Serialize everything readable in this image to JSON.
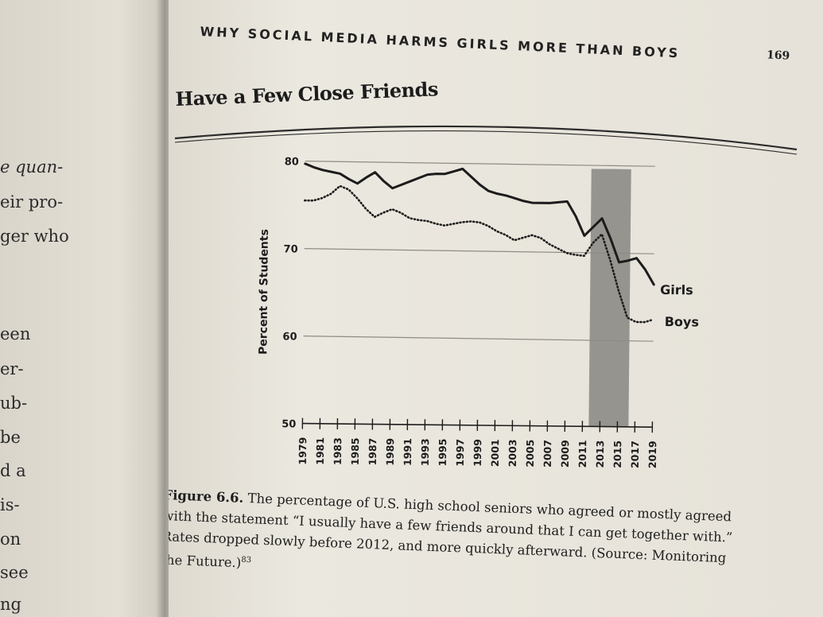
{
  "left_page": {
    "fragments": [
      {
        "text": "e quan-",
        "italic": true
      },
      {
        "text": "eir pro-",
        "italic": false
      },
      {
        "text": "ger who",
        "italic": false
      },
      {
        "text": "een",
        "italic": false
      },
      {
        "text": "er-",
        "italic": false
      },
      {
        "text": "ub-",
        "italic": false
      },
      {
        "text": "be",
        "italic": false
      },
      {
        "text": "d a",
        "italic": false
      },
      {
        "text": "is-",
        "italic": false
      },
      {
        "text": "on",
        "italic": false
      },
      {
        "text": "see",
        "italic": false
      },
      {
        "text": "ng",
        "italic": false
      }
    ]
  },
  "header": {
    "running_head": "WHY SOCIAL MEDIA HARMS GIRLS MORE THAN BOYS",
    "page_number": "169"
  },
  "chart_data": {
    "type": "line",
    "title": "Have a Few Close Friends",
    "xlabel": "",
    "ylabel": "Percent of Students",
    "ylim": [
      50,
      80
    ],
    "yticks": [
      50,
      60,
      70,
      80
    ],
    "xticks": [
      "1979",
      "1981",
      "1983",
      "1985",
      "1987",
      "1989",
      "1991",
      "1993",
      "1995",
      "1997",
      "1999",
      "2001",
      "2003",
      "2005",
      "2007",
      "2009",
      "2011",
      "2013",
      "2015",
      "2017",
      "2019"
    ],
    "grid": true,
    "highlight": {
      "from": 2012,
      "to": 2016,
      "color": "#7b7975"
    },
    "colors": {
      "line": "#1c1c1c",
      "grid": "#8e8b85"
    },
    "series": [
      {
        "name": "Girls",
        "style": "solid",
        "x": [
          1979,
          1980,
          1981,
          1982,
          1983,
          1984,
          1985,
          1986,
          1987,
          1988,
          1989,
          1990,
          1991,
          1992,
          1993,
          1994,
          1995,
          1996,
          1997,
          1998,
          1999,
          2000,
          2001,
          2002,
          2003,
          2004,
          2005,
          2006,
          2007,
          2008,
          2009,
          2010,
          2011,
          2012,
          2013,
          2014,
          2015,
          2016,
          2017,
          2018,
          2019
        ],
        "y": [
          79.7,
          79.3,
          79.0,
          78.8,
          78.6,
          78.0,
          77.5,
          78.2,
          78.8,
          77.8,
          77.0,
          77.4,
          77.8,
          78.2,
          78.6,
          78.7,
          78.7,
          79.0,
          79.3,
          78.4,
          77.5,
          76.8,
          76.5,
          76.3,
          76.0,
          75.7,
          75.5,
          75.5,
          75.5,
          75.6,
          75.7,
          74.0,
          71.8,
          72.8,
          73.8,
          71.5,
          68.8,
          69.0,
          69.3,
          68.0,
          66.3
        ]
      },
      {
        "name": "Boys",
        "style": "dotted",
        "x": [
          1979,
          1980,
          1981,
          1982,
          1983,
          1984,
          1985,
          1986,
          1987,
          1988,
          1989,
          1990,
          1991,
          1992,
          1993,
          1994,
          1995,
          1996,
          1997,
          1998,
          1999,
          2000,
          2001,
          2002,
          2003,
          2004,
          2005,
          2006,
          2007,
          2008,
          2009,
          2010,
          2011,
          2012,
          2013,
          2014,
          2015,
          2016,
          2017,
          2018,
          2019
        ],
        "y": [
          75.5,
          75.5,
          75.8,
          76.3,
          77.2,
          76.8,
          75.8,
          74.6,
          73.7,
          74.2,
          74.6,
          74.2,
          73.6,
          73.4,
          73.3,
          73.0,
          72.8,
          73.0,
          73.2,
          73.3,
          73.2,
          72.8,
          72.2,
          71.8,
          71.2,
          71.5,
          71.8,
          71.5,
          70.8,
          70.3,
          69.8,
          69.6,
          69.5,
          71.0,
          72.0,
          69.0,
          65.5,
          62.5,
          62.0,
          62.0,
          62.3
        ]
      }
    ]
  },
  "caption": {
    "figure_label": "Figure 6.6.",
    "lines": [
      "The percentage of U.S. high school seniors who agreed or mostly agreed",
      "with the statement “I usually have a few friends around that I can get together with.”",
      "Rates dropped slowly before 2012, and more quickly afterward. (Source: Monitoring",
      "the Future.)"
    ],
    "footnote": "83"
  }
}
